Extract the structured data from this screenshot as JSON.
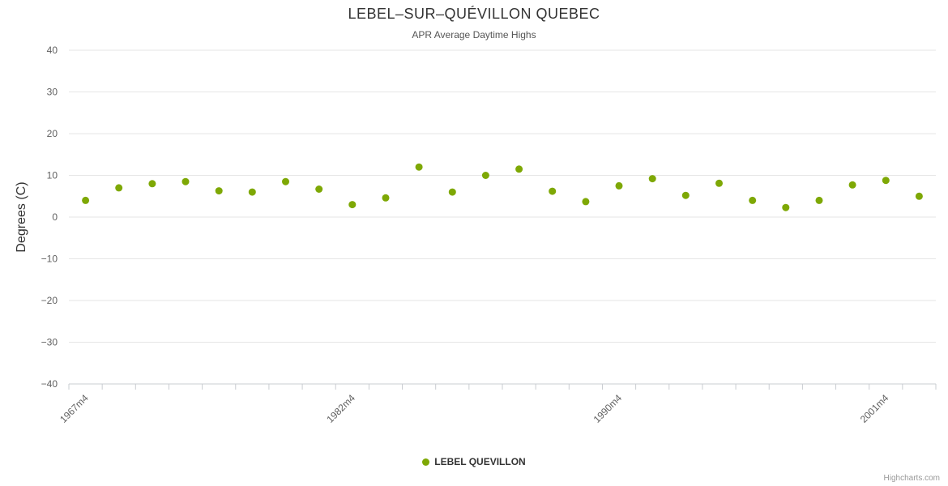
{
  "credits": {
    "label": "Highcharts.com"
  },
  "chart_data": {
    "type": "scatter",
    "title": "LEBEL–SUR–QUÉVILLON QUEBEC",
    "subtitle": "APR Average Daytime Highs",
    "ylabel": "Degrees (C)",
    "ylim": [
      -40,
      40
    ],
    "yticks": [
      -40,
      -30,
      -20,
      -10,
      0,
      10,
      20,
      30,
      40
    ],
    "n_points": 26,
    "x_tick_labels": [
      {
        "index": 0,
        "label": "1967m4"
      },
      {
        "index": 8,
        "label": "1982m4"
      },
      {
        "index": 16,
        "label": "1990m4"
      },
      {
        "index": 24,
        "label": "2001m4"
      }
    ],
    "series": [
      {
        "name": "LEBEL QUEVILLON",
        "color": "#7ea805",
        "values": [
          4,
          7,
          8,
          8.5,
          6.3,
          6,
          8.5,
          6.7,
          3,
          4.6,
          12,
          6,
          10,
          11.5,
          6.2,
          3.7,
          7.5,
          9.2,
          5.2,
          8.1,
          4,
          2.3,
          4,
          7.7,
          8.8,
          5
        ]
      }
    ],
    "legend_position": "bottom",
    "grid": "horizontal",
    "colors": {
      "grid": "#e6e6e6",
      "axis_line": "#c9ccd1",
      "tick": "#c9ccd1",
      "axis_label": "#606060"
    }
  }
}
